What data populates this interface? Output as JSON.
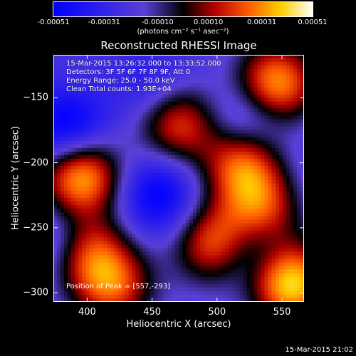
{
  "chart_data": {
    "type": "heatmap",
    "title": "Reconstructed RHESSI Image",
    "xlabel": "Heliocentric X (arcsec)",
    "ylabel": "Heliocentric Y (arcsec)",
    "xlim": [
      374,
      567
    ],
    "ylim": [
      -307,
      -117
    ],
    "x_ticks": [
      400,
      450,
      500,
      550
    ],
    "y_ticks": [
      -150,
      -200,
      -250,
      -300
    ],
    "colorbar": {
      "ticks": [
        "-0.00051",
        "-0.00031",
        "-0.00010",
        "0.00010",
        "0.00031",
        "0.00051"
      ],
      "units_label": "(photons cm⁻² s⁻¹ asec⁻²)",
      "range": [
        -0.00051,
        0.00051
      ]
    },
    "annotations": [
      "15-Mar-2015 13:26:32.000 to 13:33:52.000",
      "Detectors: 3F 5F 6F 7F 8F 9F, Att 0",
      "Energy Range: 25.0 - 50.0 keV",
      "Clean     Total counts: 1.93E+04"
    ],
    "peak_label": "Position of Peak = [557,-293]",
    "blobs": [
      {
        "x": 545,
        "y": -140,
        "value": 0.00045
      },
      {
        "x": 395,
        "y": -210,
        "value": 0.00048
      },
      {
        "x": 470,
        "y": -170,
        "value": 0.0003
      },
      {
        "x": 520,
        "y": -200,
        "value": 0.00035
      },
      {
        "x": 535,
        "y": -235,
        "value": 0.0003
      },
      {
        "x": 500,
        "y": -262,
        "value": 0.00042
      },
      {
        "x": 400,
        "y": -268,
        "value": 0.0003
      },
      {
        "x": 557,
        "y": -293,
        "value": 0.00051
      },
      {
        "x": 420,
        "y": -295,
        "value": 0.00028
      },
      {
        "x": 455,
        "y": -225,
        "value": -0.00045
      },
      {
        "x": 385,
        "y": -175,
        "value": -0.0005
      },
      {
        "x": 525,
        "y": -167,
        "value": -0.0004
      },
      {
        "x": 520,
        "y": -265,
        "value": -0.00042
      },
      {
        "x": 380,
        "y": -260,
        "value": -0.00035
      },
      {
        "x": 450,
        "y": -140,
        "value": -0.0003
      },
      {
        "x": 560,
        "y": -215,
        "value": -0.0002
      }
    ]
  },
  "timestamp": "15-Mar-2015 21:02"
}
